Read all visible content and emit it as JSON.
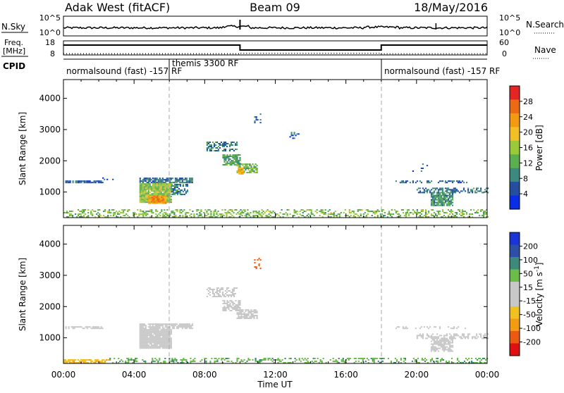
{
  "header": {
    "station": "Adak West (fitACF)",
    "beam": "Beam 09",
    "date": "18/May/2016"
  },
  "strips": {
    "nsky_label": "N.Sky",
    "nsky_ticks": [
      "10^5",
      "10^0"
    ],
    "nsearch_label": "N.Search",
    "nsearch_ticks": [
      "10^5",
      "10^0"
    ],
    "freq_label": [
      "Freq.",
      "[MHz]"
    ],
    "freq_ticks": [
      "18",
      "8"
    ],
    "nave_label": "Nave",
    "nave_ticks": [
      "60",
      "0"
    ],
    "cpid_label": "CPID",
    "cpid_segments": [
      {
        "label": "normalsound (fast) -157 RF",
        "start": 0,
        "end": 6
      },
      {
        "label": "themis 3300 RF",
        "start": 6,
        "end": 18
      },
      {
        "label": "normalsound (fast) -157 RF",
        "start": 18,
        "end": 24
      }
    ],
    "freq_profile": [
      [
        0,
        15
      ],
      [
        10,
        15
      ],
      [
        10,
        11.5
      ],
      [
        18,
        11.5
      ],
      [
        18,
        15
      ],
      [
        24,
        15
      ]
    ],
    "nave_profile": [
      [
        0,
        5
      ],
      [
        10,
        5
      ],
      [
        10,
        7
      ],
      [
        18,
        7
      ],
      [
        18,
        5
      ],
      [
        24,
        5
      ]
    ]
  },
  "time_axis": {
    "title": "Time UT",
    "ticks": [
      "00:00",
      "04:00",
      "08:00",
      "12:00",
      "16:00",
      "20:00",
      "00:00"
    ]
  },
  "colors": {
    "power": [
      "#0a2ee8",
      "#244fa0",
      "#3b8a7f",
      "#5ab04d",
      "#9ac93a",
      "#f2c025",
      "#f29a10",
      "#ec6a14",
      "#e52424"
    ],
    "velocity": [
      "#e01010",
      "#ec5a12",
      "#f39b12",
      "#f3c022",
      "#c8c8c8",
      "#c8c8c8",
      "#6bbd4a",
      "#3c8a7c",
      "#2e4fa8",
      "#1b34d8"
    ],
    "ground_scatter": "#bdbdbd"
  },
  "chart_data": [
    {
      "type": "heatmap",
      "quantity": "Power",
      "ylabel": "Slant Range [km]",
      "xlabel": "Time UT",
      "xlim": [
        0,
        24
      ],
      "ylim": [
        180,
        4600
      ],
      "yticks": [
        1000,
        2000,
        3000,
        4000
      ],
      "colorbar": {
        "label": "Power [dB]",
        "range": [
          0,
          32
        ],
        "ticks": [
          "4",
          "8",
          "12",
          "16",
          "20",
          "24",
          "28"
        ]
      },
      "regions": [
        {
          "t0": 0.1,
          "t1": 2.2,
          "r0": 1280,
          "r1": 1340,
          "density": 0.8,
          "value": 6
        },
        {
          "t0": 2.2,
          "t1": 2.8,
          "r0": 1380,
          "r1": 1440,
          "density": 0.35,
          "value": 5
        },
        {
          "t0": 4.3,
          "t1": 7.3,
          "r0": 1280,
          "r1": 1440,
          "density": 0.8,
          "value": 7
        },
        {
          "t0": 4.3,
          "t1": 6.1,
          "r0": 650,
          "r1": 1280,
          "density": 0.95,
          "value": 15
        },
        {
          "t0": 4.8,
          "t1": 5.8,
          "r0": 620,
          "r1": 860,
          "density": 0.95,
          "value": 23
        },
        {
          "t0": 6.1,
          "t1": 7.0,
          "r0": 900,
          "r1": 1250,
          "density": 0.5,
          "value": 8
        },
        {
          "t0": 8.1,
          "t1": 9.8,
          "r0": 2300,
          "r1": 2600,
          "density": 0.55,
          "value": 8
        },
        {
          "t0": 9.0,
          "t1": 10.0,
          "r0": 1850,
          "r1": 2200,
          "density": 0.7,
          "value": 11
        },
        {
          "t0": 9.8,
          "t1": 11.0,
          "r0": 1600,
          "r1": 1900,
          "density": 0.75,
          "value": 13
        },
        {
          "t0": 9.9,
          "t1": 10.2,
          "r0": 1560,
          "r1": 1760,
          "density": 0.95,
          "value": 22
        },
        {
          "t0": 10.8,
          "t1": 11.2,
          "r0": 3200,
          "r1": 3550,
          "density": 0.3,
          "value": 6
        },
        {
          "t0": 12.8,
          "t1": 13.3,
          "r0": 2700,
          "r1": 2900,
          "density": 0.3,
          "value": 6
        },
        {
          "t0": 18.8,
          "t1": 22.8,
          "r0": 1280,
          "r1": 1340,
          "density": 0.45,
          "value": 6
        },
        {
          "t0": 20.0,
          "t1": 24.0,
          "r0": 960,
          "r1": 1140,
          "density": 0.55,
          "value": 7
        },
        {
          "t0": 20.8,
          "t1": 22.0,
          "r0": 550,
          "r1": 1000,
          "density": 0.8,
          "value": 10
        },
        {
          "t0": 19.6,
          "t1": 20.6,
          "r0": 1600,
          "r1": 2000,
          "density": 0.06,
          "value": 6
        },
        {
          "t0": 0.0,
          "t1": 24.0,
          "r0": 180,
          "r1": 420,
          "density": 0.35,
          "value": 14
        }
      ]
    },
    {
      "type": "heatmap",
      "quantity": "Velocity",
      "ylabel": "Slant Range [km]",
      "xlabel": "Time UT",
      "xlim": [
        0,
        24
      ],
      "ylim": [
        180,
        4600
      ],
      "yticks": [
        1000,
        2000,
        3000,
        4000
      ],
      "colorbar": {
        "label": "Velocity [m s^-1]",
        "range": [
          -250,
          250
        ],
        "ticks": [
          "200",
          "100",
          "50",
          "15",
          "-15",
          "-50",
          "-100",
          "-200"
        ]
      },
      "regions": [
        {
          "t0": 0.1,
          "t1": 2.2,
          "r0": 1280,
          "r1": 1340,
          "density": 0.8,
          "value": 0
        },
        {
          "t0": 4.3,
          "t1": 7.3,
          "r0": 1280,
          "r1": 1440,
          "density": 0.8,
          "value": 0
        },
        {
          "t0": 4.3,
          "t1": 6.1,
          "r0": 650,
          "r1": 1280,
          "density": 0.95,
          "value": 0
        },
        {
          "t0": 8.1,
          "t1": 9.8,
          "r0": 2300,
          "r1": 2600,
          "density": 0.5,
          "value": 0
        },
        {
          "t0": 9.0,
          "t1": 10.0,
          "r0": 1850,
          "r1": 2200,
          "density": 0.65,
          "value": 0
        },
        {
          "t0": 9.8,
          "t1": 11.0,
          "r0": 1600,
          "r1": 1900,
          "density": 0.7,
          "value": 0
        },
        {
          "t0": 10.8,
          "t1": 11.2,
          "r0": 3200,
          "r1": 3550,
          "density": 0.3,
          "value": -160
        },
        {
          "t0": 18.8,
          "t1": 22.8,
          "r0": 1280,
          "r1": 1340,
          "density": 0.4,
          "value": 0
        },
        {
          "t0": 20.0,
          "t1": 24.0,
          "r0": 960,
          "r1": 1140,
          "density": 0.5,
          "value": 0
        },
        {
          "t0": 20.8,
          "t1": 22.0,
          "r0": 550,
          "r1": 1000,
          "density": 0.75,
          "value": 0
        },
        {
          "t0": 0.0,
          "t1": 2.6,
          "r0": 180,
          "r1": 300,
          "density": 0.7,
          "value": -40
        },
        {
          "t0": 2.6,
          "t1": 24.0,
          "r0": 180,
          "r1": 330,
          "density": 0.3,
          "value": 40
        }
      ]
    }
  ]
}
